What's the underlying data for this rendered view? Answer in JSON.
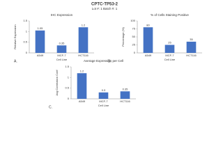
{
  "title": "CPTC-TP53-2",
  "subtitle": "Lot #: 1 Batch #: 1",
  "chart_data": [
    {
      "type": "bar",
      "panel": "A.",
      "title": "IHC Expression",
      "ylabel": "Relative Expression",
      "xlabel": "Cell Line",
      "categories": [
        "A549",
        "MCF-7",
        "HCT116"
      ],
      "values": [
        1.05,
        0.35,
        1.2
      ],
      "color": "#4472c4",
      "ylim": [
        0,
        1.5
      ],
      "yticks": [
        0,
        0.5,
        1,
        1.5
      ]
    },
    {
      "type": "bar",
      "panel": "B.",
      "title": "% of Cells Staining Positive",
      "ylabel": "Percentage (%)",
      "xlabel": "Cell Line",
      "categories": [
        "A549",
        "MCF-7",
        "HCT116"
      ],
      "values": [
        80,
        25,
        35
      ],
      "color": "#4472c4",
      "ylim": [
        0,
        100
      ],
      "yticks": [
        0,
        25,
        50,
        75,
        100
      ]
    },
    {
      "type": "bar",
      "panel": "C.",
      "title": "Average Expression per Cell",
      "ylabel": "Avg Correlation Coef",
      "xlabel": "Cell Line",
      "categories": [
        "A549",
        "MCF-7",
        "HCT116"
      ],
      "values": [
        1.2,
        0.3,
        0.35
      ],
      "color": "#4472c4",
      "ylim": [
        0,
        1.5
      ],
      "yticks": [
        0,
        0.5,
        1,
        1.5
      ]
    }
  ]
}
